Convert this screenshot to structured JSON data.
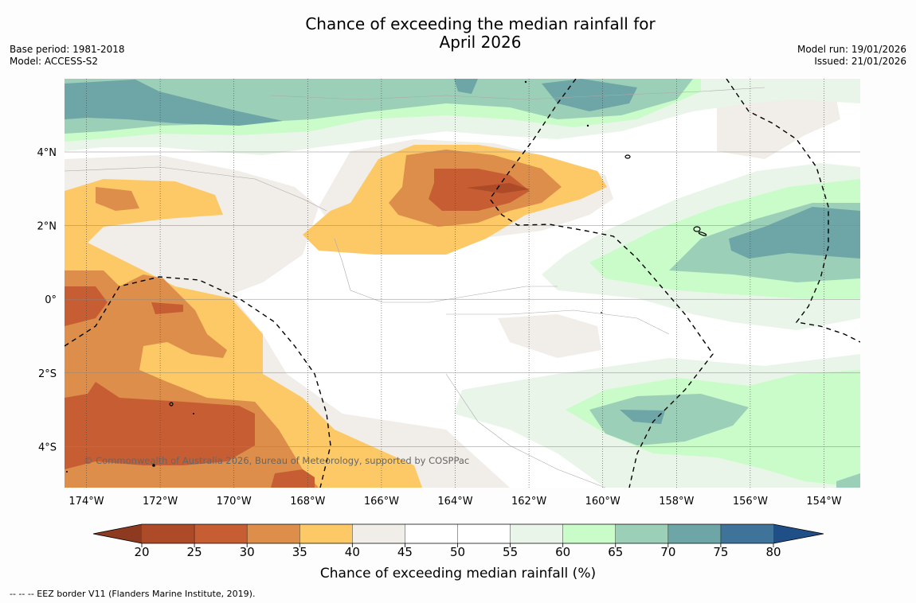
{
  "title": {
    "line1": "Chance of exceeding the median rainfall for",
    "line2": "April 2026"
  },
  "meta_left": {
    "base_period": "Base period: 1981-2018",
    "model": "Model: ACCESS-S2"
  },
  "meta_right": {
    "model_run": "Model run: 19/01/2026",
    "issued": "Issued: 21/01/2026"
  },
  "map": {
    "lon_ticks": [
      "174°W",
      "172°W",
      "170°W",
      "168°W",
      "166°W",
      "164°W",
      "162°W",
      "160°W",
      "158°W",
      "156°W",
      "154°W"
    ],
    "lat_ticks": [
      "4°N",
      "2°N",
      "0°",
      "2°S",
      "4°S"
    ],
    "copyright": "© Commonwealth of Australia 2026, Bureau of Meteorology, supported by COSPPac"
  },
  "colorbar": {
    "tick_labels": [
      "20",
      "25",
      "30",
      "35",
      "40",
      "45",
      "50",
      "55",
      "60",
      "65",
      "70",
      "75",
      "80"
    ],
    "colors": [
      "#ad4a28",
      "#c75e33",
      "#dd8e4a",
      "#fdc966",
      "#f1ede8",
      "#ffffff",
      "#ffffff",
      "#e9f5e9",
      "#c9fcc8",
      "#9ccfb7",
      "#6ea5a6",
      "#3f7399"
    ],
    "low_extend_color": "#8e3a20",
    "high_extend_color": "#1f4f86",
    "label": "Chance of exceeding median rainfall (%)"
  },
  "footer": "--  --  -- EEZ border V11 (Flanders Marine Institute, 2019)."
}
